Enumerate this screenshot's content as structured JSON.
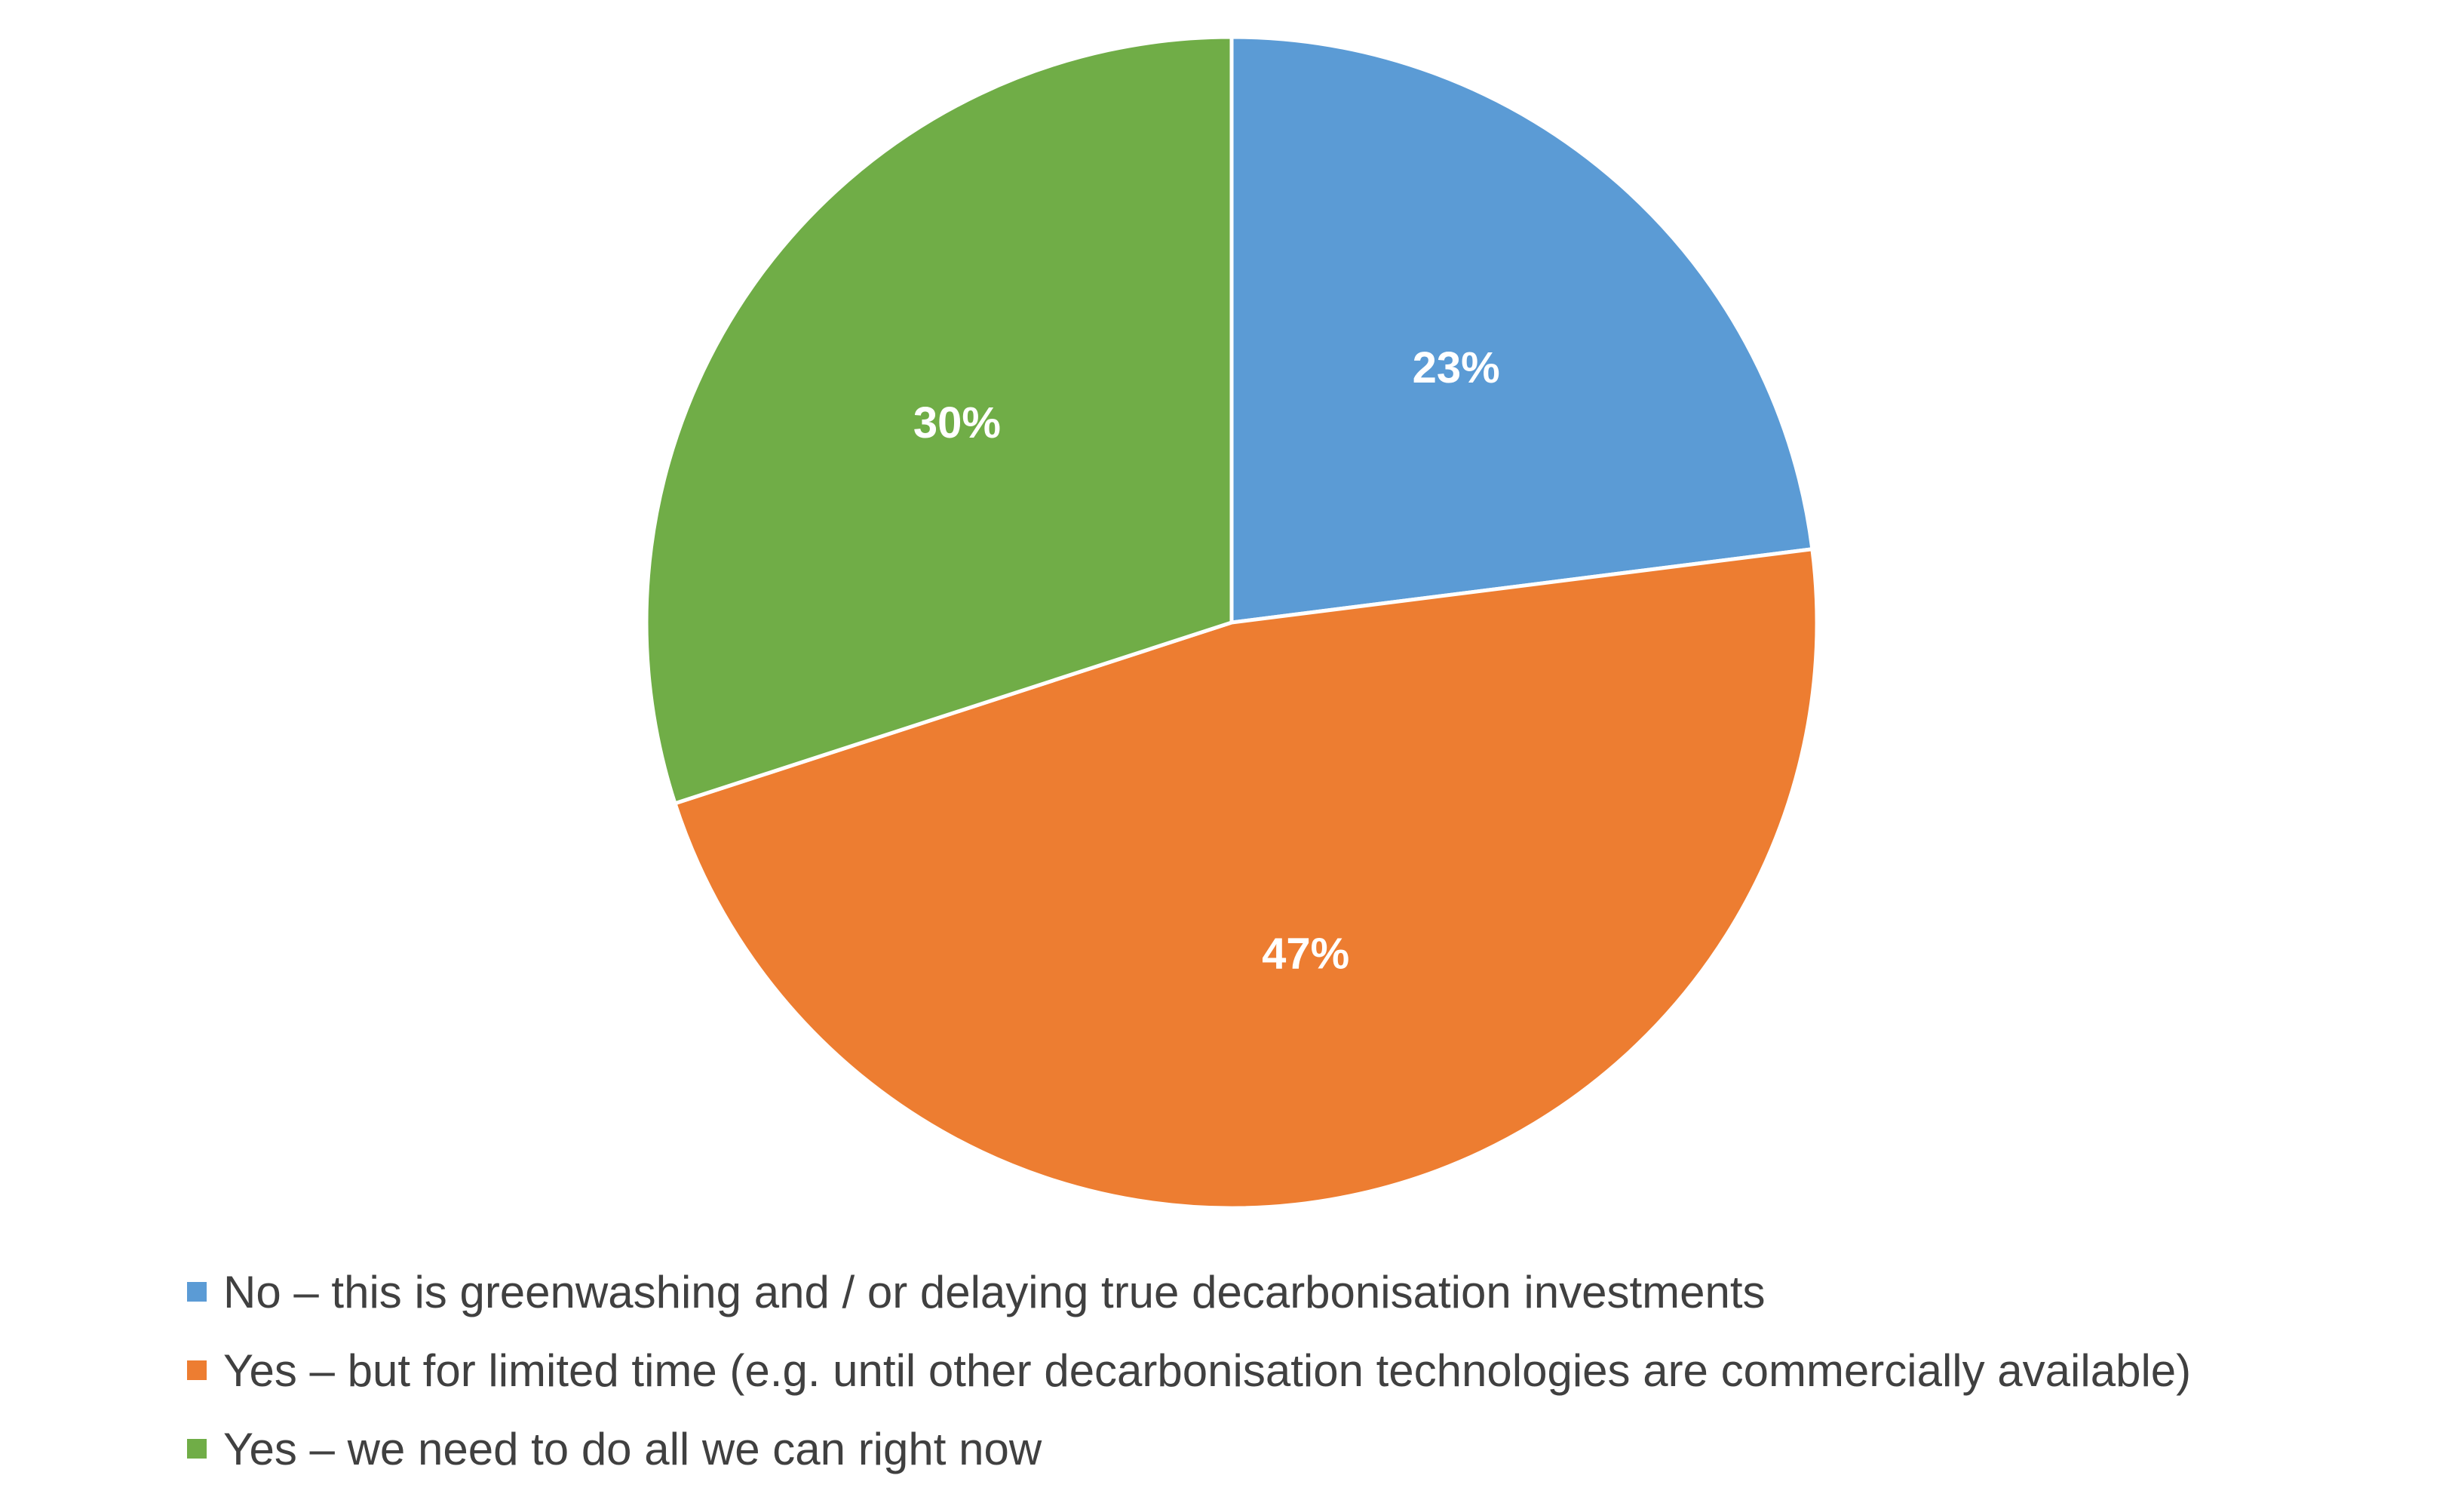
{
  "chart_data": {
    "type": "pie",
    "title": "",
    "start_angle_deg": 0,
    "direction": "clockwise",
    "slices": [
      {
        "label": "No – this is greenwashing and / or delaying true decarbonisation investments",
        "value": 23,
        "display": "23%",
        "color": "#5B9BD5"
      },
      {
        "label": "Yes – but for limited time (e.g. until other decarbonisation technologies are commercially available)",
        "value": 47,
        "display": "47%",
        "color": "#ED7D31"
      },
      {
        "label": "Yes – we need to do all we can right now",
        "value": 30,
        "display": "30%",
        "color": "#70AD47"
      }
    ],
    "legend_position": "bottom-left"
  }
}
